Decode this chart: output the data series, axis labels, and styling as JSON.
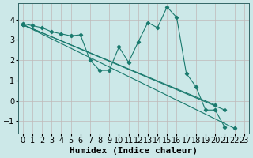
{
  "xlabel": "Humidex (Indice chaleur)",
  "background_color": "#cce8e8",
  "line_color": "#1a7a6e",
  "xlim": [
    -0.5,
    23.5
  ],
  "ylim": [
    -1.6,
    4.8
  ],
  "xticks": [
    0,
    1,
    2,
    3,
    4,
    5,
    6,
    7,
    8,
    9,
    10,
    11,
    12,
    13,
    14,
    15,
    16,
    17,
    18,
    19,
    20,
    21,
    22,
    23
  ],
  "yticks": [
    -1,
    0,
    1,
    2,
    3,
    4
  ],
  "fontsize_xlabel": 8,
  "fontsize_tick": 7,
  "series_zigzag_x": [
    0,
    1,
    2,
    3,
    4,
    5,
    6,
    7,
    8,
    9,
    10,
    11,
    12,
    13,
    14,
    15,
    16,
    17,
    18,
    19,
    20,
    21,
    22
  ],
  "series_zigzag_y": [
    3.8,
    3.7,
    3.6,
    3.4,
    3.3,
    3.2,
    3.25,
    2.0,
    1.5,
    1.5,
    2.65,
    1.9,
    2.9,
    3.85,
    3.6,
    4.62,
    4.1,
    1.35,
    0.7,
    -0.45,
    -0.45,
    -1.3,
    null
  ],
  "line1_x": [
    0,
    22
  ],
  "line1_y": [
    3.75,
    -1.35
  ],
  "line2_x": [
    0,
    21
  ],
  "line2_y": [
    3.75,
    -0.45
  ],
  "line3_x": [
    0,
    20
  ],
  "line3_y": [
    3.75,
    -0.2
  ]
}
